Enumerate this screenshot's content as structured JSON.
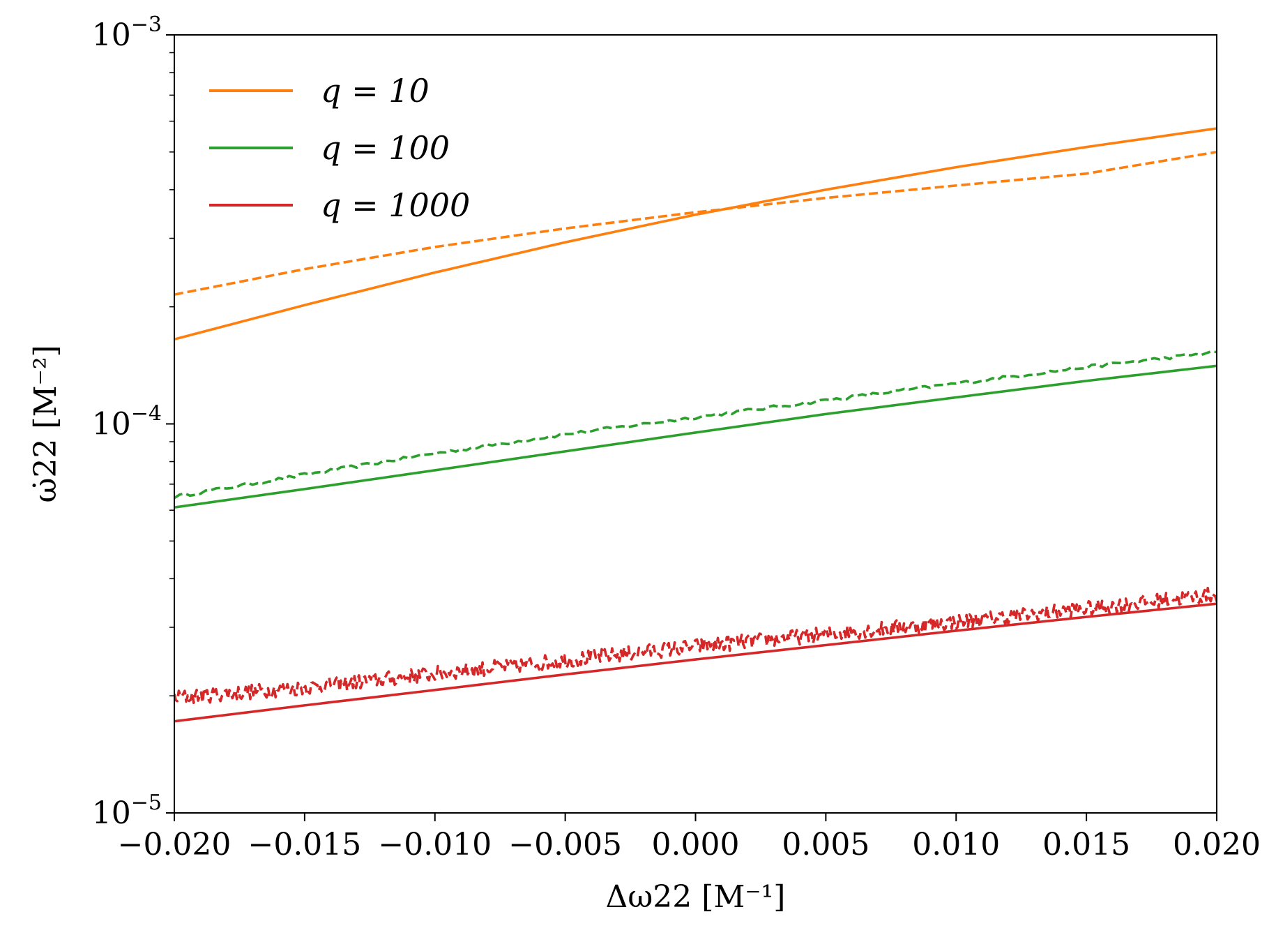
{
  "chart_data": {
    "type": "line",
    "xlabel": "Δω22 [M⁻¹]",
    "ylabel": "ω̇22 [M⁻²]",
    "xlim": [
      -0.02,
      0.02
    ],
    "ylim": [
      1e-05,
      0.001
    ],
    "yscale": "log",
    "grid": false,
    "legend_position": "top-left",
    "x_ticks": [
      "−0.020",
      "−0.015",
      "−0.010",
      "−0.005",
      "0.000",
      "0.005",
      "0.010",
      "0.015",
      "0.020"
    ],
    "x_tick_values": [
      -0.02,
      -0.015,
      -0.01,
      -0.005,
      0.0,
      0.005,
      0.01,
      0.015,
      0.02
    ],
    "y_ticks": [
      {
        "base": "10",
        "exp": "−5",
        "value": 1e-05
      },
      {
        "base": "10",
        "exp": "−4",
        "value": 0.0001
      },
      {
        "base": "10",
        "exp": "−3",
        "value": 0.001
      }
    ],
    "series": [
      {
        "name": "q = 10",
        "color": "#ff7f0e",
        "style": "solid",
        "x": [
          -0.02,
          -0.015,
          -0.01,
          -0.005,
          0.0,
          0.005,
          0.01,
          0.015,
          0.02
        ],
        "y": [
          0.000165,
          0.000202,
          0.000245,
          0.000293,
          0.000345,
          0.0004,
          0.000457,
          0.000515,
          0.000575
        ]
      },
      {
        "name": "",
        "color": "#ff7f0e",
        "style": "dashed",
        "x": [
          -0.02,
          -0.015,
          -0.01,
          -0.005,
          0.0,
          0.005,
          0.01,
          0.015,
          0.02
        ],
        "y": [
          0.000215,
          0.00025,
          0.000285,
          0.000318,
          0.00035,
          0.000381,
          0.00041,
          0.00044,
          0.0005
        ]
      },
      {
        "name": "q = 100",
        "color": "#2ca02c",
        "style": "solid",
        "x": [
          -0.02,
          -0.015,
          -0.01,
          -0.005,
          0.0,
          0.005,
          0.01,
          0.015,
          0.02
        ],
        "y": [
          6.1e-05,
          6.8e-05,
          7.6e-05,
          8.5e-05,
          9.5e-05,
          0.000106,
          0.000117,
          0.000129,
          0.000141
        ]
      },
      {
        "name": "",
        "color": "#2ca02c",
        "style": "dashed",
        "x": [
          -0.02,
          -0.015,
          -0.01,
          -0.005,
          0.0,
          0.005,
          0.01,
          0.015,
          0.02
        ],
        "y": [
          6.5e-05,
          7.4e-05,
          8.4e-05,
          9.4e-05,
          0.000104,
          0.000115,
          0.000127,
          0.00014,
          0.000153
        ]
      },
      {
        "name": "q = 1000",
        "color": "#d62728",
        "style": "solid",
        "x": [
          -0.02,
          -0.015,
          -0.01,
          -0.005,
          0.0,
          0.005,
          0.01,
          0.015,
          0.02
        ],
        "y": [
          1.72e-05,
          1.89e-05,
          2.07e-05,
          2.27e-05,
          2.48e-05,
          2.7e-05,
          2.94e-05,
          3.19e-05,
          3.45e-05
        ]
      },
      {
        "name": "",
        "color": "#d62728",
        "style": "dashed-noisy",
        "x": [
          -0.02,
          -0.015,
          -0.01,
          -0.005,
          0.0,
          0.005,
          0.01,
          0.015,
          0.02
        ],
        "y": [
          1.98e-05,
          2.1e-05,
          2.28e-05,
          2.47e-05,
          2.68e-05,
          2.88e-05,
          3.1e-05,
          3.35e-05,
          3.65e-05
        ]
      }
    ]
  }
}
